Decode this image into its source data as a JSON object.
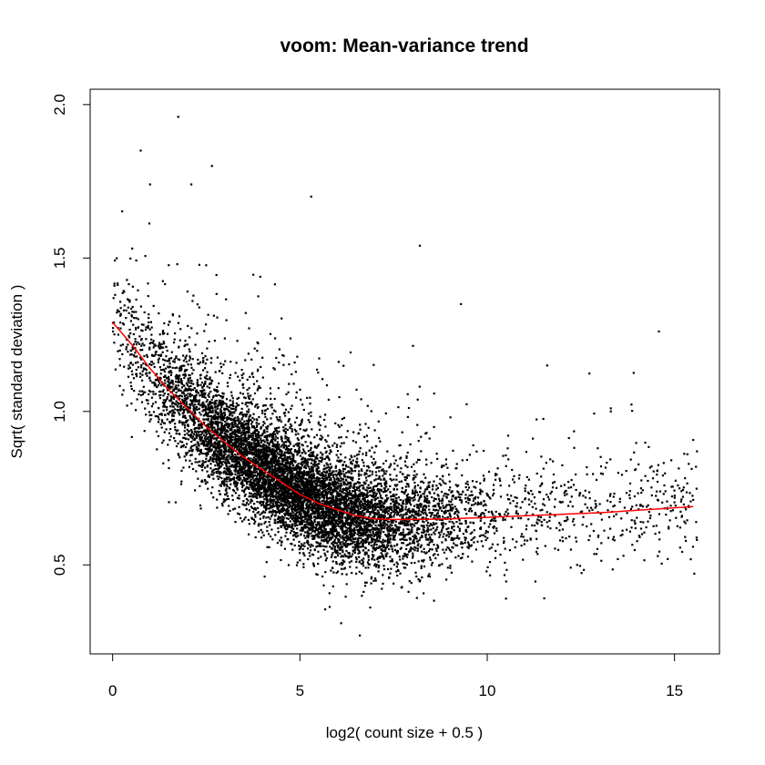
{
  "chart_data": {
    "type": "scatter",
    "title": "voom: Mean-variance trend",
    "xlabel": "log2( count size + 0.5 )",
    "ylabel": "Sqrt( standard deviation )",
    "xlim": [
      -0.6,
      16.2
    ],
    "ylim": [
      0.21,
      2.05
    ],
    "x_ticks": [
      0,
      5,
      10,
      15
    ],
    "y_ticks": [
      0.5,
      1.0,
      1.5,
      2.0
    ],
    "x_tick_labels": [
      "0",
      "5",
      "10",
      "15"
    ],
    "y_tick_labels": [
      "0.5",
      "1.0",
      "1.5",
      "2.0"
    ],
    "grid": false,
    "legend": "none",
    "colors": {
      "points": "#000000",
      "trend": "#ff0000",
      "axes": "#000000"
    },
    "trend_line": {
      "x": [
        0.0,
        0.5,
        1.0,
        1.5,
        2.0,
        2.5,
        3.0,
        3.5,
        4.0,
        4.5,
        5.0,
        5.5,
        6.0,
        6.5,
        7.0,
        7.5,
        8.0,
        9.0,
        10.0,
        11.0,
        12.0,
        13.0,
        14.0,
        15.5
      ],
      "y": [
        1.29,
        1.22,
        1.14,
        1.07,
        1.01,
        0.95,
        0.9,
        0.85,
        0.81,
        0.77,
        0.73,
        0.7,
        0.68,
        0.66,
        0.65,
        0.648,
        0.648,
        0.65,
        0.655,
        0.66,
        0.665,
        0.67,
        0.678,
        0.69
      ]
    },
    "point_cloud": {
      "description_count": 9000,
      "trend_source": "trend_line",
      "x_range": [
        0.0,
        15.6
      ],
      "notable_points": [
        {
          "x": 1.75,
          "y": 1.96
        },
        {
          "x": 0.75,
          "y": 1.85
        },
        {
          "x": 2.65,
          "y": 1.8
        },
        {
          "x": 1.0,
          "y": 1.74
        },
        {
          "x": 2.1,
          "y": 1.74
        },
        {
          "x": 5.3,
          "y": 1.7
        },
        {
          "x": 8.2,
          "y": 1.54
        },
        {
          "x": 9.3,
          "y": 1.35
        },
        {
          "x": 11.6,
          "y": 1.15
        },
        {
          "x": 13.3,
          "y": 1.01
        },
        {
          "x": 13.3,
          "y": 1.0
        },
        {
          "x": 15.6,
          "y": 0.87
        },
        {
          "x": 13.5,
          "y": 0.8
        },
        {
          "x": 12.4,
          "y": 0.5
        },
        {
          "x": 6.6,
          "y": 0.27
        },
        {
          "x": 6.1,
          "y": 0.31
        },
        {
          "x": 10.5,
          "y": 0.39
        },
        {
          "x": 14.1,
          "y": 0.64
        },
        {
          "x": 13.4,
          "y": 0.58
        },
        {
          "x": 0.2,
          "y": 1.15
        }
      ]
    }
  }
}
